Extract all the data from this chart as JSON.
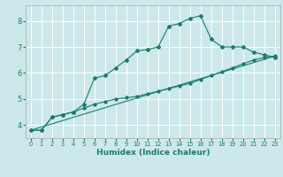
{
  "background_color": "#cce8ea",
  "grid_color": "#ffffff",
  "line_color": "#1a7a6e",
  "xlabel": "Humidex (Indice chaleur)",
  "xlim": [
    -0.5,
    23.5
  ],
  "ylim": [
    3.5,
    8.6
  ],
  "yticks": [
    4,
    5,
    6,
    7,
    8
  ],
  "xticks": [
    0,
    1,
    2,
    3,
    4,
    5,
    6,
    7,
    8,
    9,
    10,
    11,
    12,
    13,
    14,
    15,
    16,
    17,
    18,
    19,
    20,
    21,
    22,
    23
  ],
  "line1_x": [
    0,
    1,
    2,
    3,
    4,
    5,
    6,
    7,
    8,
    9,
    10,
    11,
    12,
    13,
    14,
    15,
    16,
    17,
    18,
    19,
    20,
    21,
    22,
    23
  ],
  "line1_y": [
    3.8,
    3.8,
    4.3,
    4.4,
    4.5,
    4.8,
    5.8,
    5.9,
    6.2,
    6.5,
    6.85,
    6.9,
    7.0,
    7.8,
    7.9,
    8.1,
    8.2,
    7.3,
    7.0,
    7.0,
    7.0,
    6.8,
    6.7,
    6.6
  ],
  "line2_x": [
    0,
    1,
    2,
    3,
    4,
    5,
    6,
    7,
    8,
    9,
    10,
    11,
    12,
    13,
    14,
    15,
    16,
    17,
    18,
    19,
    20,
    21,
    22,
    23
  ],
  "line2_y": [
    3.8,
    3.8,
    4.3,
    4.4,
    4.5,
    4.65,
    4.8,
    4.9,
    5.0,
    5.05,
    5.1,
    5.2,
    5.3,
    5.4,
    5.5,
    5.6,
    5.75,
    5.9,
    6.05,
    6.2,
    6.35,
    6.5,
    6.6,
    6.65
  ],
  "line3_x": [
    0,
    23
  ],
  "line3_y": [
    3.8,
    6.65
  ]
}
